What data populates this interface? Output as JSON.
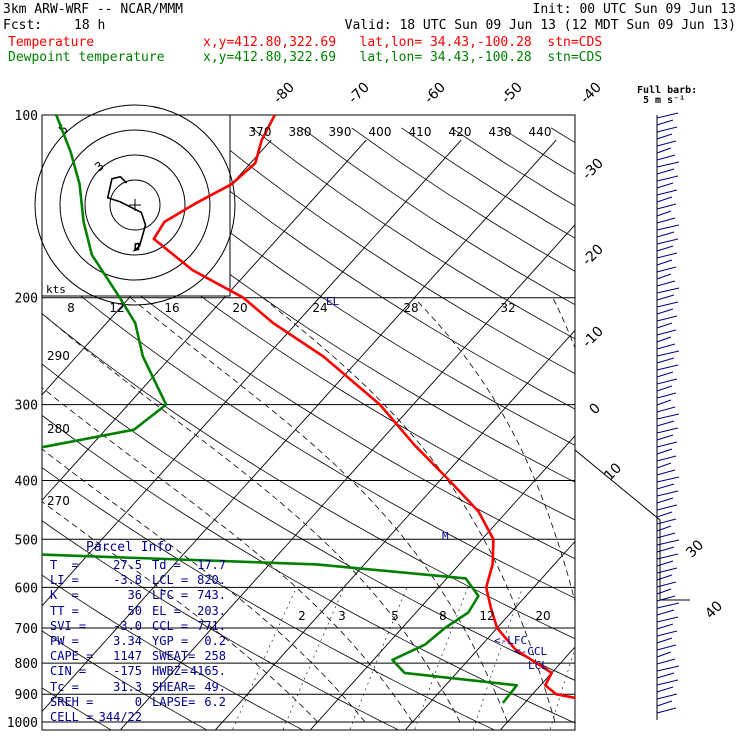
{
  "header": {
    "model": "3km ARW-WRF -- NCAR/MMM",
    "init": "Init: 00 UTC Sun 09 Jun 13",
    "fcst_label": "Fcst:",
    "fcst_value": "18 h",
    "valid": "Valid: 18 UTC Sun 09 Jun 13 (12 MDT Sun 09 Jun 13)"
  },
  "legend": [
    {
      "name": "Temperature",
      "info": "x,y=412.80,322.69   lat,lon= 34.43,-100.28  stn=CDS",
      "color": "#ff0000"
    },
    {
      "name": "Dewpoint temperature",
      "info": "x,y=412.80,322.69   lat,lon= 34.43,-100.28  stn=CDS",
      "color": "#008000"
    }
  ],
  "barb_key": {
    "title": "Full barb:",
    "value": "5 m s⁻¹"
  },
  "parcel": {
    "title": "Parcel Info",
    "rows": [
      [
        "T  =",
        "27.5",
        "Td =",
        "17.7"
      ],
      [
        "LI =",
        "-3.8",
        "LCL =",
        "820."
      ],
      [
        "K  =",
        "36",
        "LFC =",
        "743."
      ],
      [
        "TT =",
        "50",
        "EL =",
        "203."
      ],
      [
        "SVI =",
        "-3.0",
        "CCL =",
        "771."
      ],
      [
        "PW =",
        "3.34",
        "YGP =",
        "0.2"
      ],
      [
        "CAPE =",
        "1147",
        "SWEAT=",
        "258"
      ],
      [
        "CIN =",
        "-175",
        "HWBZ=",
        "4165."
      ],
      [
        "Tc =",
        "31.3",
        "SHEAR=",
        "49."
      ],
      [
        "SREH =",
        "0",
        "LAPSE=",
        "6.2"
      ],
      [
        "CELL =",
        "344/22",
        "",
        ""
      ]
    ]
  },
  "labels": {
    "lfc": "<-LFC",
    "ccl": "<-CCL",
    "lcl": "LCL",
    "el": "EL",
    "m": "M",
    "kts": "kts"
  },
  "hodograph": {
    "ring_labels": [
      "5",
      "3"
    ],
    "speed_ticks": [
      "8",
      "12",
      "16",
      "20",
      "24",
      "28",
      "32"
    ]
  },
  "chart_data": {
    "type": "line",
    "title": "",
    "ylabel": "",
    "y_scale": "log-pressure (inverted)",
    "pressure_ticks": [
      100,
      200,
      300,
      400,
      500,
      600,
      700,
      800,
      900,
      1000
    ],
    "isotherm_ticks": [
      -80,
      -70,
      -60,
      -50,
      -40,
      -30,
      -20,
      -10,
      0,
      10,
      30,
      40
    ],
    "theta_ticks": [
      370,
      380,
      390,
      400,
      410,
      420,
      430,
      440
    ],
    "theta_side_ticks": [
      290,
      280,
      270
    ],
    "mixing_ratio_ticks": [
      2,
      3,
      5,
      8,
      12,
      20
    ],
    "series": [
      {
        "name": "Temperature",
        "color": "#ff0000",
        "points": [
          [
            930,
            28.0
          ],
          [
            900,
            22.5
          ],
          [
            870,
            20.5
          ],
          [
            830,
            20.0
          ],
          [
            800,
            17.5
          ],
          [
            760,
            14.0
          ],
          [
            700,
            10.0
          ],
          [
            650,
            7.5
          ],
          [
            600,
            5.0
          ],
          [
            550,
            3.5
          ],
          [
            500,
            1.2
          ],
          [
            450,
            -3.0
          ],
          [
            400,
            -9.0
          ],
          [
            350,
            -16.0
          ],
          [
            300,
            -23.5
          ],
          [
            250,
            -34.0
          ],
          [
            220,
            -42.5
          ],
          [
            200,
            -48.0
          ],
          [
            180,
            -56.0
          ],
          [
            160,
            -63.0
          ],
          [
            150,
            -63.5
          ],
          [
            140,
            -62.0
          ],
          [
            130,
            -60.0
          ],
          [
            120,
            -59.5
          ],
          [
            110,
            -61.0
          ],
          [
            100,
            -62.0
          ]
        ]
      },
      {
        "name": "Dewpoint temperature",
        "color": "#008000",
        "points": [
          [
            930,
            17.7
          ],
          [
            870,
            17.5
          ],
          [
            830,
            4.5
          ],
          [
            790,
            2.0
          ],
          [
            745,
            4.0
          ],
          [
            700,
            4.5
          ],
          [
            660,
            5.5
          ],
          [
            620,
            5.0
          ],
          [
            580,
            2.0
          ],
          [
            550,
            -15.0
          ],
          [
            520,
            -60.0
          ],
          [
            470,
            -90.0
          ],
          [
            420,
            -78.0
          ],
          [
            380,
            -64.0
          ],
          [
            330,
            -47.0
          ],
          [
            300,
            -46.0
          ],
          [
            250,
            -53.0
          ],
          [
            220,
            -57.0
          ],
          [
            200,
            -61.0
          ],
          [
            170,
            -68.0
          ],
          [
            150,
            -72.0
          ],
          [
            130,
            -76.0
          ],
          [
            115,
            -80.0
          ],
          [
            100,
            -85.0
          ]
        ]
      }
    ],
    "hodograph_path": [
      [
        13.5,
        -6.0
      ],
      [
        13.6,
        -4.5
      ],
      [
        14.4,
        -4.4
      ],
      [
        14.3,
        -5.8
      ],
      [
        13.5,
        -6.0
      ],
      [
        14.6,
        -5.0
      ],
      [
        16.0,
        0.0
      ],
      [
        15.0,
        3.0
      ],
      [
        10.0,
        5.5
      ],
      [
        7.0,
        6.5
      ],
      [
        8.0,
        11.0
      ],
      [
        10.0,
        11.5
      ],
      [
        11.5,
        10.0
      ]
    ]
  }
}
